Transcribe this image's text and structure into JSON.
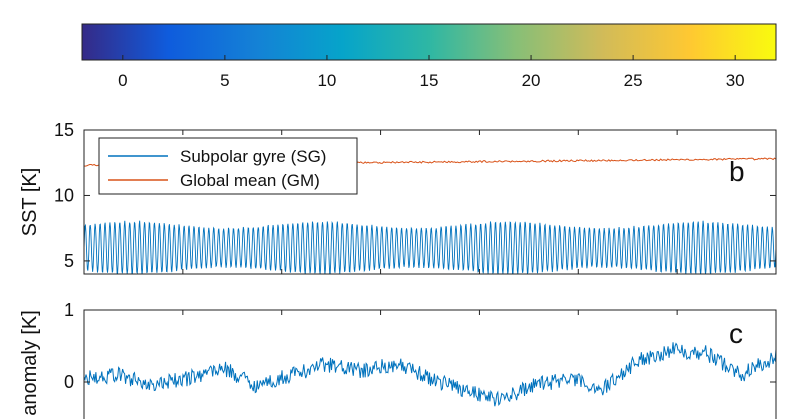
{
  "chart_data": [
    {
      "type": "colorbar",
      "colormap": "parula",
      "colors": [
        "#352a87",
        "#0f5cdd",
        "#1481d6",
        "#06a4ca",
        "#2eb7a4",
        "#87bf77",
        "#d1bb59",
        "#fec832",
        "#f9fb0e"
      ],
      "range": [
        -2,
        32
      ],
      "ticks": [
        0,
        5,
        10,
        15,
        20,
        25,
        30
      ],
      "tick_labels": [
        "0",
        "5",
        "10",
        "15",
        "20",
        "25",
        "30"
      ]
    },
    {
      "type": "line",
      "ylabel": "SST [K]",
      "panel_label": "b",
      "ylim": [
        4,
        15
      ],
      "yticks": [
        5,
        10,
        15
      ],
      "ytick_labels": [
        "5",
        "10",
        "15"
      ],
      "x": {
        "start": 0,
        "end": 1,
        "points": 481
      },
      "grid": false,
      "legend": {
        "position": "top-left"
      },
      "series": [
        {
          "name": "Subpolar gyre (SG)",
          "color": "#0072bd",
          "mean": 6.0,
          "amplitude": 1.75,
          "cycles": 140,
          "cycle_amplitude_mod": 0.15
        },
        {
          "name": "Global mean (GM)",
          "color": "#d95319",
          "start_value": 12.3,
          "end_value": 12.8,
          "noise": 0.07
        }
      ]
    },
    {
      "type": "line",
      "ylabel": "anomaly  [K]",
      "panel_label": "c",
      "ylim": [
        -0.5,
        1
      ],
      "yticks": [
        0,
        1
      ],
      "ytick_labels": [
        "0",
        "1"
      ],
      "grid": false,
      "series": [
        {
          "color": "#0072bd",
          "x": [
            0,
            0.05,
            0.1,
            0.15,
            0.2,
            0.25,
            0.3,
            0.35,
            0.4,
            0.45,
            0.5,
            0.55,
            0.6,
            0.65,
            0.7,
            0.75,
            0.8,
            0.85,
            0.9,
            0.95,
            1.0
          ],
          "values": [
            0.05,
            0.1,
            -0.05,
            0.05,
            0.2,
            -0.05,
            0.1,
            0.25,
            0.15,
            0.25,
            0.05,
            -0.1,
            -0.25,
            -0.05,
            0.05,
            -0.1,
            0.3,
            0.45,
            0.4,
            0.1,
            0.35
          ],
          "noise": 0.11
        }
      ]
    }
  ]
}
